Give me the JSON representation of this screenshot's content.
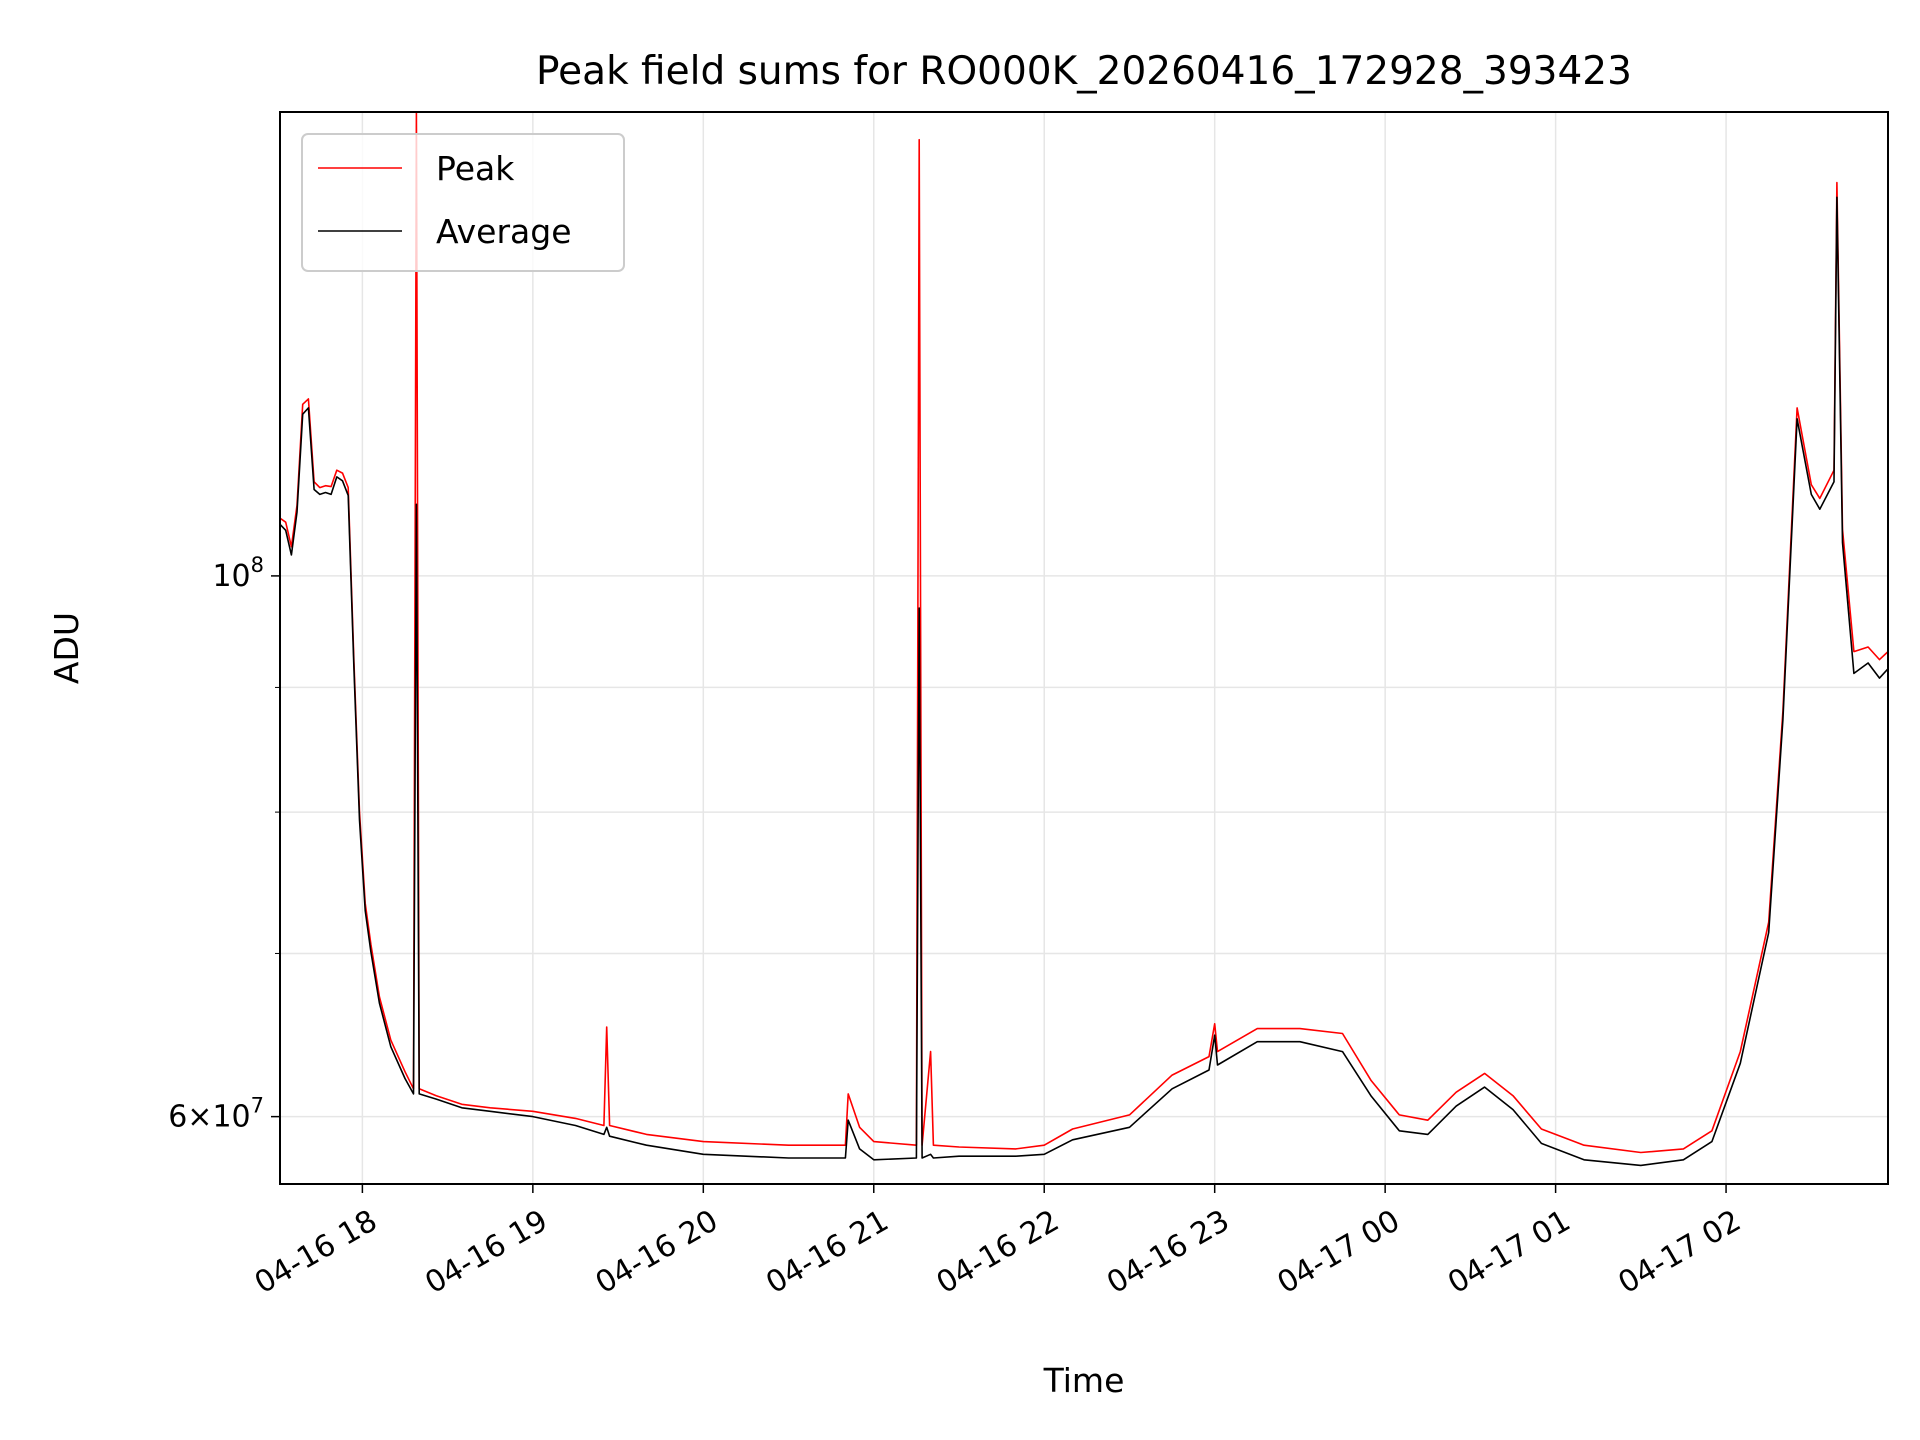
{
  "chart_data": {
    "type": "line",
    "title": "Peak field sums for RO000K_20260416_172928_393423",
    "xlabel": "Time",
    "ylabel": "ADU",
    "y_scale": "log",
    "ylim": [
      56300000,
      155000000
    ],
    "y_major_ticks": [
      {
        "value": 60000000,
        "base": "6",
        "exp": "7"
      },
      {
        "value": 100000000,
        "base": "",
        "exp": "8"
      }
    ],
    "y_minor_ticks": [
      70000000,
      80000000,
      90000000
    ],
    "xlim": [
      "2026-04-16 17:31",
      "2026-04-17 02:57"
    ],
    "x_ticks": [
      {
        "value": "2026-04-16 18:00",
        "label": "04-16 18"
      },
      {
        "value": "2026-04-16 19:00",
        "label": "04-16 19"
      },
      {
        "value": "2026-04-16 20:00",
        "label": "04-16 20"
      },
      {
        "value": "2026-04-16 21:00",
        "label": "04-16 21"
      },
      {
        "value": "2026-04-16 22:00",
        "label": "04-16 22"
      },
      {
        "value": "2026-04-16 23:00",
        "label": "04-16 23"
      },
      {
        "value": "2026-04-17 00:00",
        "label": "04-17 00"
      },
      {
        "value": "2026-04-17 01:00",
        "label": "04-17 01"
      },
      {
        "value": "2026-04-17 02:00",
        "label": "04-17 02"
      }
    ],
    "grid": true,
    "legend_position": "upper-left",
    "series": [
      {
        "name": "Peak",
        "color": "#ff0000",
        "points": [
          [
            "2026-04-16 17:31",
            105600000
          ],
          [
            "2026-04-16 17:33",
            105200000
          ],
          [
            "2026-04-16 17:35",
            102800000
          ],
          [
            "2026-04-16 17:37",
            106900000
          ],
          [
            "2026-04-16 17:39",
            117600000
          ],
          [
            "2026-04-16 17:41",
            118200000
          ],
          [
            "2026-04-16 17:43",
            109300000
          ],
          [
            "2026-04-16 17:45",
            108700000
          ],
          [
            "2026-04-16 17:47",
            108900000
          ],
          [
            "2026-04-16 17:49",
            108800000
          ],
          [
            "2026-04-16 17:51",
            110500000
          ],
          [
            "2026-04-16 17:53",
            110200000
          ],
          [
            "2026-04-16 17:55",
            108700000
          ],
          [
            "2026-04-16 17:57",
            92300000
          ],
          [
            "2026-04-16 17:59",
            80000000
          ],
          [
            "2026-04-16 18:01",
            73400000
          ],
          [
            "2026-04-16 18:03",
            70600000
          ],
          [
            "2026-04-16 18:06",
            67200000
          ],
          [
            "2026-04-16 18:10",
            64500000
          ],
          [
            "2026-04-16 18:15",
            62600000
          ],
          [
            "2026-04-16 18:18",
            61600000
          ],
          [
            "2026-04-16 18:19",
            155000000
          ],
          [
            "2026-04-16 18:20",
            61600000
          ],
          [
            "2026-04-16 18:26",
            61200000
          ],
          [
            "2026-04-16 18:35",
            60700000
          ],
          [
            "2026-04-16 18:45",
            60500000
          ],
          [
            "2026-04-16 19:00",
            60300000
          ],
          [
            "2026-04-16 19:15",
            59900000
          ],
          [
            "2026-04-16 19:25",
            59500000
          ],
          [
            "2026-04-16 19:26",
            65300000
          ],
          [
            "2026-04-16 19:27",
            59500000
          ],
          [
            "2026-04-16 19:40",
            59000000
          ],
          [
            "2026-04-16 20:00",
            58600000
          ],
          [
            "2026-04-16 20:30",
            58400000
          ],
          [
            "2026-04-16 20:50",
            58400000
          ],
          [
            "2026-04-16 20:51",
            61300000
          ],
          [
            "2026-04-16 20:55",
            59400000
          ],
          [
            "2026-04-16 21:00",
            58600000
          ],
          [
            "2026-04-16 21:15",
            58400000
          ],
          [
            "2026-04-16 21:16",
            151000000
          ],
          [
            "2026-04-16 21:17",
            58400000
          ],
          [
            "2026-04-16 21:20",
            63800000
          ],
          [
            "2026-04-16 21:21",
            58400000
          ],
          [
            "2026-04-16 21:30",
            58300000
          ],
          [
            "2026-04-16 21:50",
            58200000
          ],
          [
            "2026-04-16 22:00",
            58400000
          ],
          [
            "2026-04-16 22:10",
            59300000
          ],
          [
            "2026-04-16 22:30",
            60100000
          ],
          [
            "2026-04-16 22:45",
            62400000
          ],
          [
            "2026-04-16 22:58",
            63500000
          ],
          [
            "2026-04-16 23:00",
            65500000
          ],
          [
            "2026-04-16 23:01",
            63800000
          ],
          [
            "2026-04-16 23:15",
            65200000
          ],
          [
            "2026-04-16 23:30",
            65200000
          ],
          [
            "2026-04-16 23:45",
            64900000
          ],
          [
            "2026-04-16 23:55",
            62100000
          ],
          [
            "2026-04-17 00:05",
            60100000
          ],
          [
            "2026-04-17 00:15",
            59800000
          ],
          [
            "2026-04-17 00:25",
            61400000
          ],
          [
            "2026-04-17 00:35",
            62500000
          ],
          [
            "2026-04-17 00:45",
            61200000
          ],
          [
            "2026-04-17 00:55",
            59300000
          ],
          [
            "2026-04-17 01:10",
            58400000
          ],
          [
            "2026-04-17 01:30",
            58000000
          ],
          [
            "2026-04-17 01:45",
            58200000
          ],
          [
            "2026-04-17 01:55",
            59200000
          ],
          [
            "2026-04-17 02:05",
            63800000
          ],
          [
            "2026-04-17 02:15",
            72100000
          ],
          [
            "2026-04-17 02:20",
            88000000
          ],
          [
            "2026-04-17 02:25",
            117200000
          ],
          [
            "2026-04-17 02:30",
            109000000
          ],
          [
            "2026-04-17 02:33",
            107600000
          ],
          [
            "2026-04-17 02:38",
            110500000
          ],
          [
            "2026-04-17 02:39",
            145000000
          ],
          [
            "2026-04-17 02:41",
            104500000
          ],
          [
            "2026-04-17 02:45",
            93100000
          ],
          [
            "2026-04-17 02:50",
            93500000
          ],
          [
            "2026-04-17 02:54",
            92400000
          ],
          [
            "2026-04-17 02:57",
            93100000
          ]
        ]
      },
      {
        "name": "Average",
        "color": "#000000",
        "points": [
          [
            "2026-04-16 17:31",
            105000000
          ],
          [
            "2026-04-16 17:33",
            104400000
          ],
          [
            "2026-04-16 17:35",
            102000000
          ],
          [
            "2026-04-16 17:37",
            106200000
          ],
          [
            "2026-04-16 17:39",
            116500000
          ],
          [
            "2026-04-16 17:41",
            117200000
          ],
          [
            "2026-04-16 17:43",
            108500000
          ],
          [
            "2026-04-16 17:45",
            108000000
          ],
          [
            "2026-04-16 17:47",
            108200000
          ],
          [
            "2026-04-16 17:49",
            108000000
          ],
          [
            "2026-04-16 17:51",
            109800000
          ],
          [
            "2026-04-16 17:53",
            109400000
          ],
          [
            "2026-04-16 17:55",
            107900000
          ],
          [
            "2026-04-16 17:57",
            91700000
          ],
          [
            "2026-04-16 17:59",
            79400000
          ],
          [
            "2026-04-16 18:01",
            72900000
          ],
          [
            "2026-04-16 18:03",
            70100000
          ],
          [
            "2026-04-16 18:06",
            66800000
          ],
          [
            "2026-04-16 18:10",
            64100000
          ],
          [
            "2026-04-16 18:15",
            62200000
          ],
          [
            "2026-04-16 18:18",
            61300000
          ],
          [
            "2026-04-16 18:19",
            107000000
          ],
          [
            "2026-04-16 18:20",
            61300000
          ],
          [
            "2026-04-16 18:26",
            61000000
          ],
          [
            "2026-04-16 18:35",
            60500000
          ],
          [
            "2026-04-16 18:45",
            60300000
          ],
          [
            "2026-04-16 19:00",
            60000000
          ],
          [
            "2026-04-16 19:15",
            59500000
          ],
          [
            "2026-04-16 19:25",
            59000000
          ],
          [
            "2026-04-16 19:26",
            59400000
          ],
          [
            "2026-04-16 19:27",
            58900000
          ],
          [
            "2026-04-16 19:40",
            58400000
          ],
          [
            "2026-04-16 20:00",
            57900000
          ],
          [
            "2026-04-16 20:30",
            57700000
          ],
          [
            "2026-04-16 20:50",
            57700000
          ],
          [
            "2026-04-16 20:51",
            59800000
          ],
          [
            "2026-04-16 20:55",
            58200000
          ],
          [
            "2026-04-16 21:00",
            57600000
          ],
          [
            "2026-04-16 21:15",
            57700000
          ],
          [
            "2026-04-16 21:16",
            97000000
          ],
          [
            "2026-04-16 21:17",
            57700000
          ],
          [
            "2026-04-16 21:20",
            57900000
          ],
          [
            "2026-04-16 21:21",
            57700000
          ],
          [
            "2026-04-16 21:30",
            57800000
          ],
          [
            "2026-04-16 21:50",
            57800000
          ],
          [
            "2026-04-16 22:00",
            57900000
          ],
          [
            "2026-04-16 22:10",
            58700000
          ],
          [
            "2026-04-16 22:30",
            59400000
          ],
          [
            "2026-04-16 22:45",
            61600000
          ],
          [
            "2026-04-16 22:58",
            62700000
          ],
          [
            "2026-04-16 23:00",
            64800000
          ],
          [
            "2026-04-16 23:01",
            63000000
          ],
          [
            "2026-04-16 23:15",
            64400000
          ],
          [
            "2026-04-16 23:30",
            64400000
          ],
          [
            "2026-04-16 23:45",
            63800000
          ],
          [
            "2026-04-16 23:55",
            61200000
          ],
          [
            "2026-04-17 00:05",
            59200000
          ],
          [
            "2026-04-17 00:15",
            59000000
          ],
          [
            "2026-04-17 00:25",
            60600000
          ],
          [
            "2026-04-17 00:35",
            61700000
          ],
          [
            "2026-04-17 00:45",
            60400000
          ],
          [
            "2026-04-17 00:55",
            58500000
          ],
          [
            "2026-04-17 01:10",
            57600000
          ],
          [
            "2026-04-17 01:30",
            57300000
          ],
          [
            "2026-04-17 01:45",
            57600000
          ],
          [
            "2026-04-17 01:55",
            58600000
          ],
          [
            "2026-04-17 02:05",
            63100000
          ],
          [
            "2026-04-17 02:15",
            71400000
          ],
          [
            "2026-04-17 02:20",
            87300000
          ],
          [
            "2026-04-17 02:25",
            116000000
          ],
          [
            "2026-04-17 02:30",
            108000000
          ],
          [
            "2026-04-17 02:33",
            106500000
          ],
          [
            "2026-04-17 02:38",
            109300000
          ],
          [
            "2026-04-17 02:39",
            143000000
          ],
          [
            "2026-04-17 02:41",
            103200000
          ],
          [
            "2026-04-17 02:45",
            91200000
          ],
          [
            "2026-04-17 02:50",
            92100000
          ],
          [
            "2026-04-17 02:54",
            90800000
          ],
          [
            "2026-04-17 02:57",
            91600000
          ]
        ]
      }
    ]
  }
}
